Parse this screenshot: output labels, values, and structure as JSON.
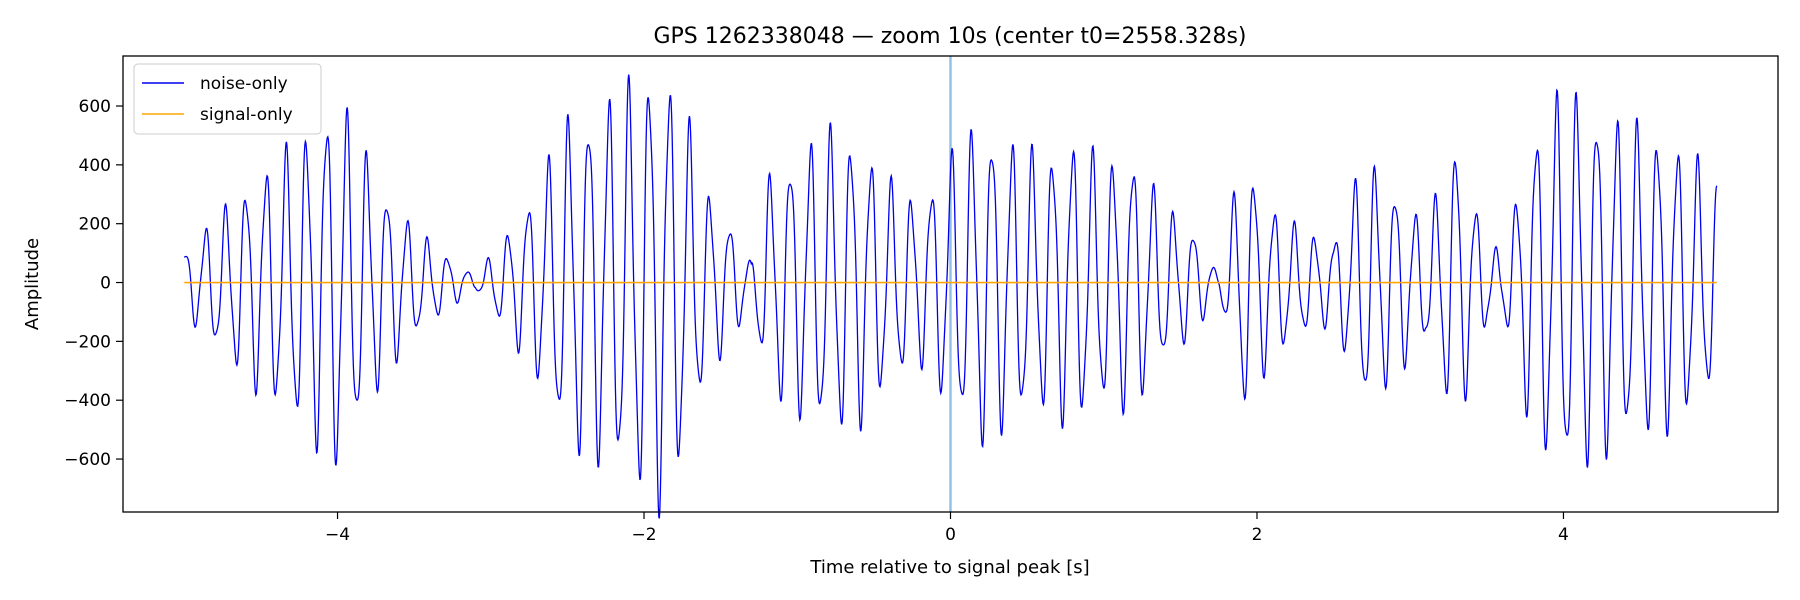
{
  "chart_data": {
    "type": "line",
    "title": "GPS 1262338048 — zoom 10s (center t0=2558.328s)",
    "xlabel": "Time relative to signal peak [s]",
    "ylabel": "Amplitude",
    "xlim": [
      -5.4,
      5.4
    ],
    "ylim": [
      -780,
      770
    ],
    "xticks": [
      -4,
      -2,
      0,
      2,
      4
    ],
    "xtick_labels": [
      "−4",
      "−2",
      "0",
      "2",
      "4"
    ],
    "yticks": [
      -600,
      -400,
      -200,
      0,
      200,
      400,
      600
    ],
    "ytick_labels": [
      "−600",
      "−400",
      "−200",
      "0",
      "200",
      "400",
      "600"
    ],
    "grid": false,
    "legend_position": "top-left",
    "vline": {
      "x": 0,
      "color": "#8fbfe6"
    },
    "series": [
      {
        "name": "noise-only",
        "color": "#0000ee",
        "x_range": [
          -5.0,
          5.0
        ],
        "oscillation_hz": 7.6,
        "envelope": {
          "x": [
            -5.0,
            -4.8,
            -4.5,
            -4.2,
            -4.0,
            -3.7,
            -3.5,
            -3.3,
            -3.1,
            -2.9,
            -2.7,
            -2.5,
            -2.3,
            -2.1,
            -1.9,
            -1.75,
            -1.6,
            -1.4,
            -1.3,
            -1.2,
            -1.0,
            -0.8,
            -0.6,
            -0.4,
            -0.2,
            0.0,
            0.2,
            0.4,
            0.6,
            0.8,
            1.0,
            1.2,
            1.4,
            1.6,
            1.75,
            1.9,
            2.1,
            2.3,
            2.5,
            2.7,
            2.9,
            3.1,
            3.3,
            3.5,
            3.6,
            3.8,
            4.0,
            4.2,
            4.4,
            4.6,
            4.8,
            5.0
          ],
          "y": [
            100,
            200,
            350,
            470,
            590,
            300,
            170,
            90,
            20,
            150,
            300,
            520,
            560,
            620,
            700,
            580,
            300,
            160,
            60,
            330,
            410,
            480,
            450,
            320,
            250,
            400,
            510,
            440,
            400,
            450,
            380,
            400,
            240,
            160,
            20,
            400,
            240,
            160,
            130,
            390,
            300,
            180,
            450,
            130,
            90,
            480,
            610,
            560,
            500,
            480,
            420,
            320
          ]
        }
      },
      {
        "name": "signal-only",
        "color": "#ffa500",
        "x": [
          -5.0,
          5.0
        ],
        "y": [
          0,
          0
        ]
      }
    ]
  }
}
